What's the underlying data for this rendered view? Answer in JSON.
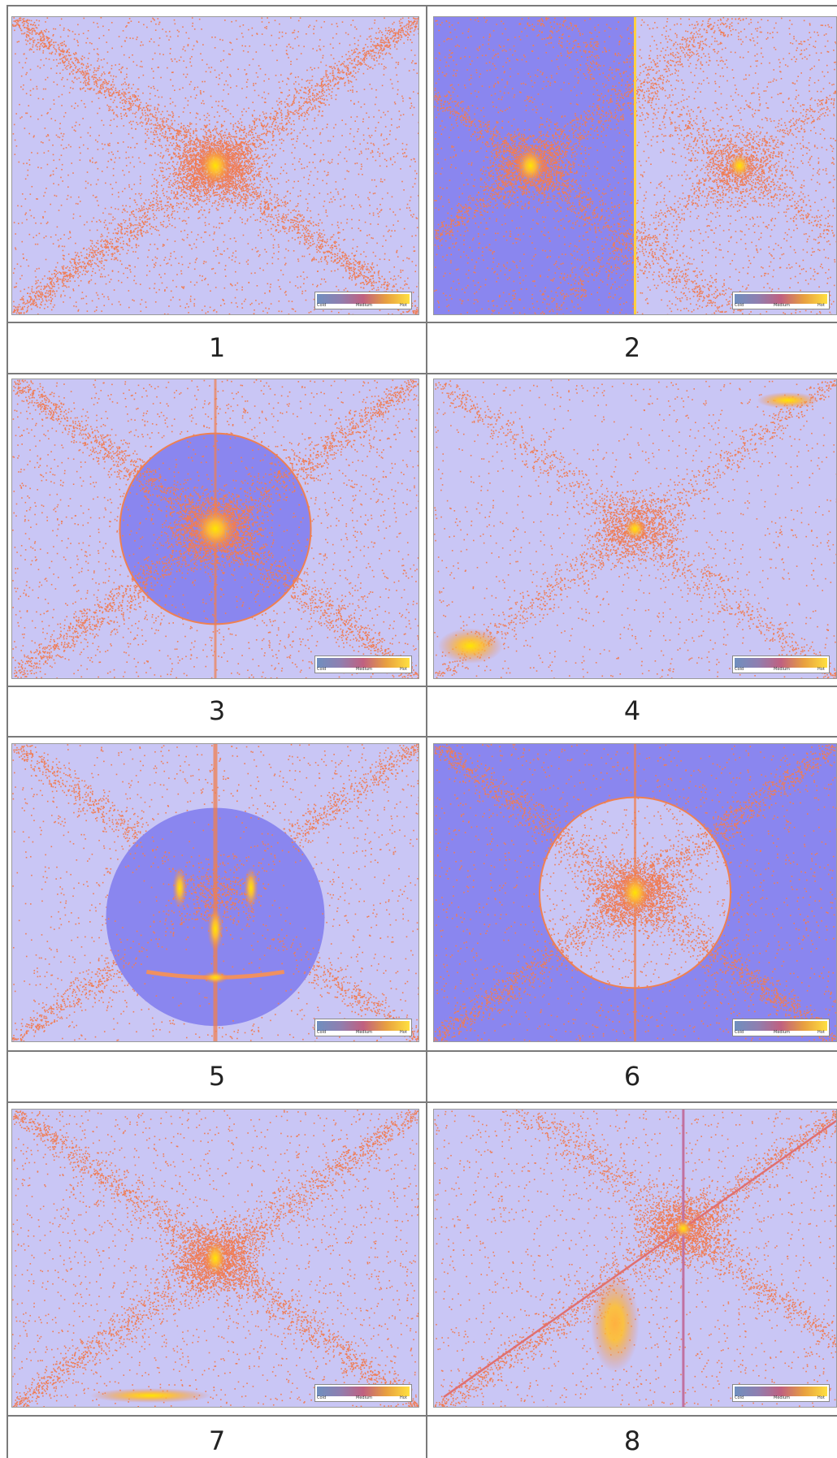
{
  "colors": {
    "background_light": "#c9c6f5",
    "background_dark": "#8a86ef",
    "speck": "#f07d55",
    "hot": "#ffe600"
  },
  "legend": {
    "cold": "Cold",
    "medium": "Medium",
    "hot": "Hot"
  },
  "panels": [
    {
      "label": "1",
      "pattern": "center"
    },
    {
      "label": "2",
      "pattern": "split"
    },
    {
      "label": "3",
      "pattern": "circle-dark"
    },
    {
      "label": "4",
      "pattern": "corners"
    },
    {
      "label": "5",
      "pattern": "smiley"
    },
    {
      "label": "6",
      "pattern": "circle-light"
    },
    {
      "label": "7",
      "pattern": "bottom-streak"
    },
    {
      "label": "8",
      "pattern": "diagonal"
    }
  ]
}
